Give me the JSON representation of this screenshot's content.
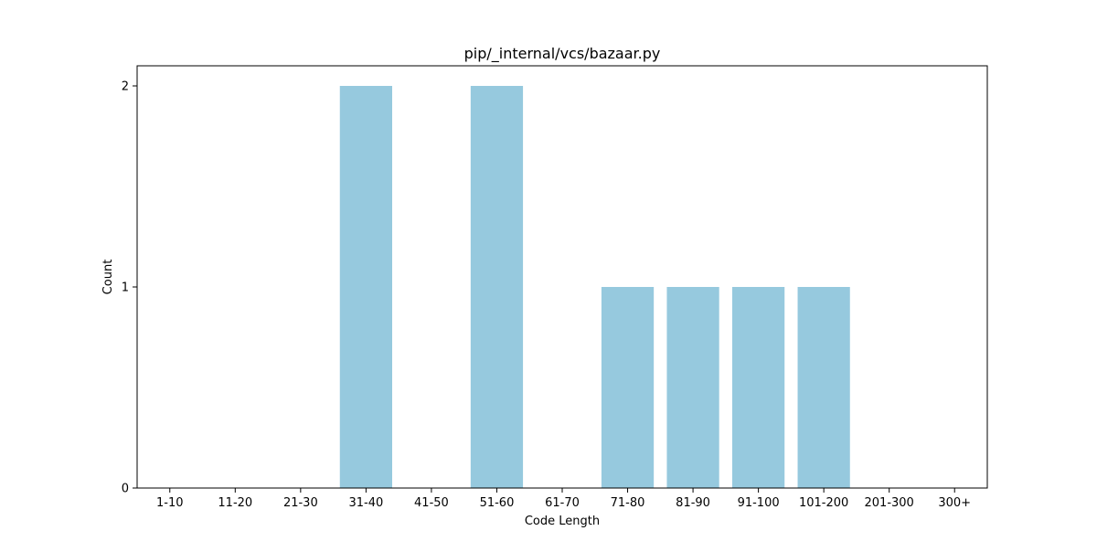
{
  "chart_data": {
    "type": "bar",
    "title": "pip/_internal/vcs/bazaar.py",
    "xlabel": "Code Length",
    "ylabel": "Count",
    "categories": [
      "1-10",
      "11-20",
      "21-30",
      "31-40",
      "41-50",
      "51-60",
      "61-70",
      "71-80",
      "81-90",
      "91-100",
      "101-200",
      "201-300",
      "300+"
    ],
    "values": [
      0,
      0,
      0,
      2,
      0,
      2,
      0,
      1,
      1,
      1,
      1,
      0,
      0
    ],
    "ylim": [
      0,
      2.1
    ],
    "yticks": [
      "0",
      "1",
      "2"
    ],
    "bar_color": "#96c9de",
    "grid": false,
    "legend": "none"
  }
}
